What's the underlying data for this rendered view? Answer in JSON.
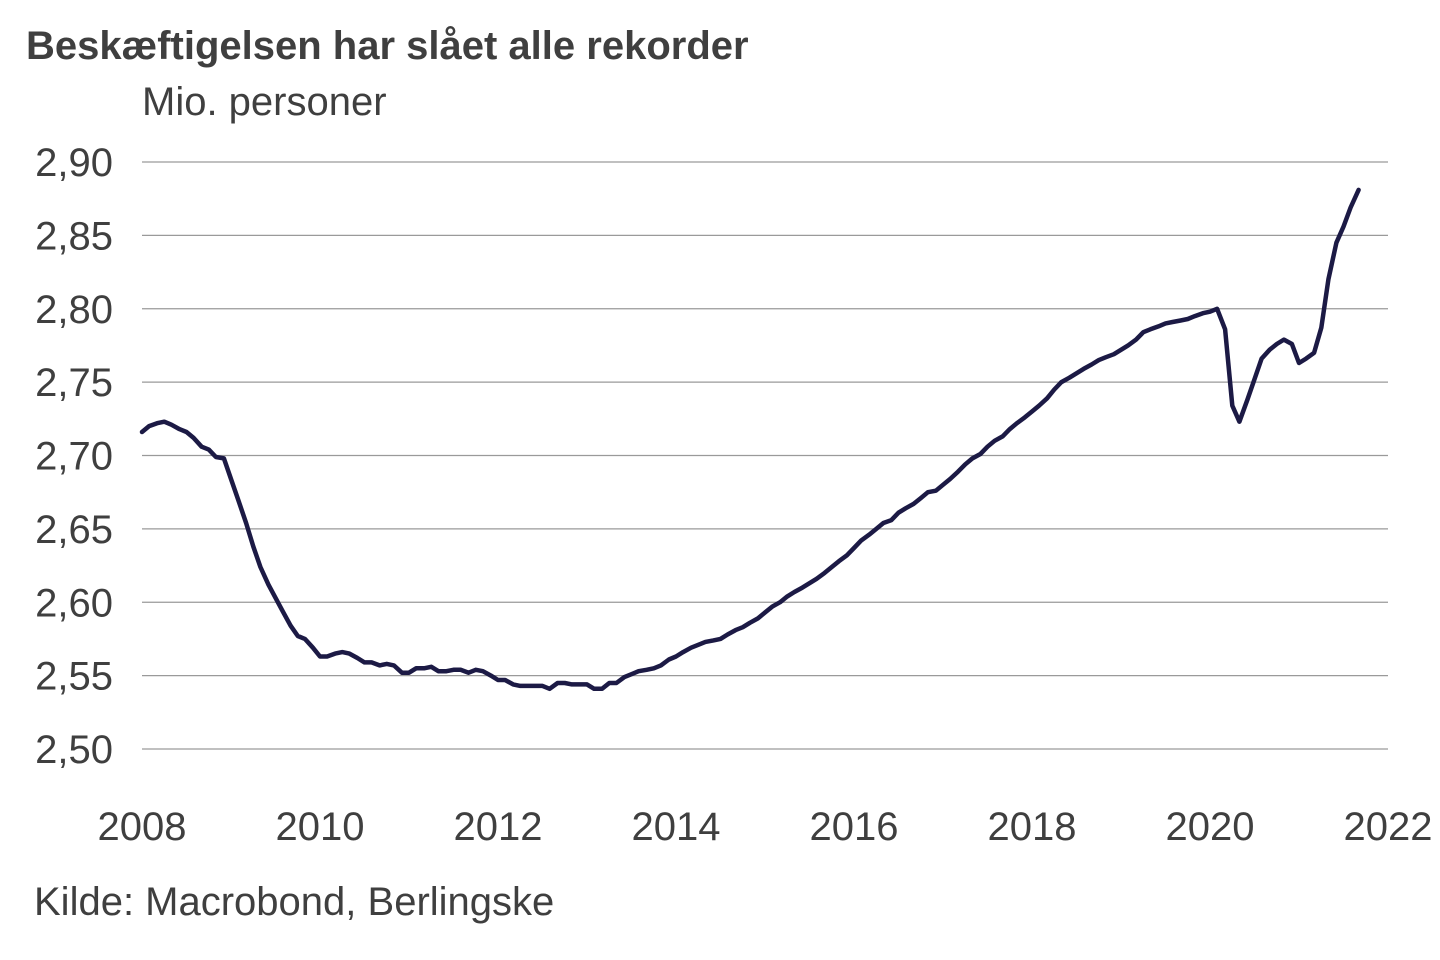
{
  "chart_data": {
    "type": "line",
    "title": "Beskæftigelsen har slået alle rekorder",
    "subtitle": "Mio. personer",
    "source": "Kilde: Macrobond, Berlingske",
    "xlabel": "",
    "ylabel": "",
    "xlim": [
      2008,
      2022
    ],
    "ylim": [
      2.5,
      2.9
    ],
    "grid": true,
    "legend": "none",
    "line_color": "#1c1a45",
    "grid_color": "#9a9a9a",
    "x_ticks": [
      "2008",
      "2010",
      "2012",
      "2014",
      "2016",
      "2018",
      "2020",
      "2022"
    ],
    "y_ticks": [
      "2,50",
      "2,55",
      "2,60",
      "2,65",
      "2,70",
      "2,75",
      "2,80",
      "2,85",
      "2,90"
    ],
    "series": [
      {
        "name": "",
        "x": [
          2008.0,
          2008.08,
          2008.17,
          2008.25,
          2008.33,
          2008.42,
          2008.5,
          2008.58,
          2008.67,
          2008.75,
          2008.83,
          2008.92,
          2009.0,
          2009.08,
          2009.17,
          2009.25,
          2009.33,
          2009.42,
          2009.5,
          2009.58,
          2009.67,
          2009.75,
          2009.83,
          2009.92,
          2010.0,
          2010.08,
          2010.17,
          2010.25,
          2010.33,
          2010.42,
          2010.5,
          2010.58,
          2010.67,
          2010.75,
          2010.83,
          2010.92,
          2011.0,
          2011.08,
          2011.17,
          2011.25,
          2011.33,
          2011.42,
          2011.5,
          2011.58,
          2011.67,
          2011.75,
          2011.83,
          2011.92,
          2012.0,
          2012.08,
          2012.17,
          2012.25,
          2012.33,
          2012.42,
          2012.5,
          2012.58,
          2012.67,
          2012.75,
          2012.83,
          2012.92,
          2013.0,
          2013.08,
          2013.17,
          2013.25,
          2013.33,
          2013.42,
          2013.5,
          2013.58,
          2013.67,
          2013.75,
          2013.83,
          2013.92,
          2014.0,
          2014.08,
          2014.17,
          2014.25,
          2014.33,
          2014.42,
          2014.5,
          2014.58,
          2014.67,
          2014.75,
          2014.83,
          2014.92,
          2015.0,
          2015.08,
          2015.17,
          2015.25,
          2015.33,
          2015.42,
          2015.5,
          2015.58,
          2015.67,
          2015.75,
          2015.83,
          2015.92,
          2016.0,
          2016.08,
          2016.17,
          2016.25,
          2016.33,
          2016.42,
          2016.5,
          2016.58,
          2016.67,
          2016.75,
          2016.83,
          2016.92,
          2017.0,
          2017.08,
          2017.17,
          2017.25,
          2017.33,
          2017.42,
          2017.5,
          2017.58,
          2017.67,
          2017.75,
          2017.83,
          2017.92,
          2018.0,
          2018.08,
          2018.17,
          2018.25,
          2018.33,
          2018.42,
          2018.5,
          2018.58,
          2018.67,
          2018.75,
          2018.83,
          2018.92,
          2019.0,
          2019.08,
          2019.17,
          2019.25,
          2019.33,
          2019.42,
          2019.5,
          2019.58,
          2019.67,
          2019.75,
          2019.83,
          2019.92,
          2020.0,
          2020.08,
          2020.17,
          2020.25,
          2020.33,
          2020.42,
          2020.5,
          2020.58,
          2020.67,
          2020.75,
          2020.83,
          2020.92,
          2021.0,
          2021.08,
          2021.17,
          2021.25,
          2021.33,
          2021.42,
          2021.5,
          2021.58,
          2021.67
        ],
        "y": [
          2.716,
          2.72,
          2.722,
          2.723,
          2.721,
          2.718,
          2.716,
          2.712,
          2.706,
          2.704,
          2.699,
          2.698,
          2.684,
          2.67,
          2.654,
          2.638,
          2.624,
          2.612,
          2.603,
          2.594,
          2.584,
          2.577,
          2.575,
          2.569,
          2.563,
          2.563,
          2.565,
          2.566,
          2.565,
          2.562,
          2.559,
          2.559,
          2.557,
          2.558,
          2.557,
          2.552,
          2.552,
          2.555,
          2.555,
          2.556,
          2.553,
          2.553,
          2.554,
          2.554,
          2.552,
          2.554,
          2.553,
          2.55,
          2.547,
          2.547,
          2.544,
          2.543,
          2.543,
          2.543,
          2.543,
          2.541,
          2.545,
          2.545,
          2.544,
          2.544,
          2.544,
          2.541,
          2.541,
          2.545,
          2.545,
          2.549,
          2.551,
          2.553,
          2.554,
          2.555,
          2.557,
          2.561,
          2.563,
          2.566,
          2.569,
          2.571,
          2.573,
          2.574,
          2.575,
          2.578,
          2.581,
          2.583,
          2.586,
          2.589,
          2.593,
          2.597,
          2.6,
          2.604,
          2.607,
          2.61,
          2.613,
          2.616,
          2.62,
          2.624,
          2.628,
          2.632,
          2.637,
          2.642,
          2.646,
          2.65,
          2.654,
          2.656,
          2.661,
          2.664,
          2.667,
          2.671,
          2.675,
          2.676,
          2.68,
          2.684,
          2.689,
          2.694,
          2.698,
          2.701,
          2.706,
          2.71,
          2.713,
          2.718,
          2.722,
          2.726,
          2.73,
          2.734,
          2.739,
          2.745,
          2.75,
          2.753,
          2.756,
          2.759,
          2.762,
          2.765,
          2.767,
          2.769,
          2.772,
          2.775,
          2.779,
          2.784,
          2.786,
          2.788,
          2.79,
          2.791,
          2.792,
          2.793,
          2.795,
          2.797,
          2.798,
          2.8,
          2.786,
          2.734,
          2.723,
          2.738,
          2.752,
          2.766,
          2.772,
          2.776,
          2.779,
          2.776,
          2.763,
          2.766,
          2.77,
          2.787,
          2.82,
          2.845,
          2.856,
          2.869,
          2.881
        ]
      }
    ]
  }
}
